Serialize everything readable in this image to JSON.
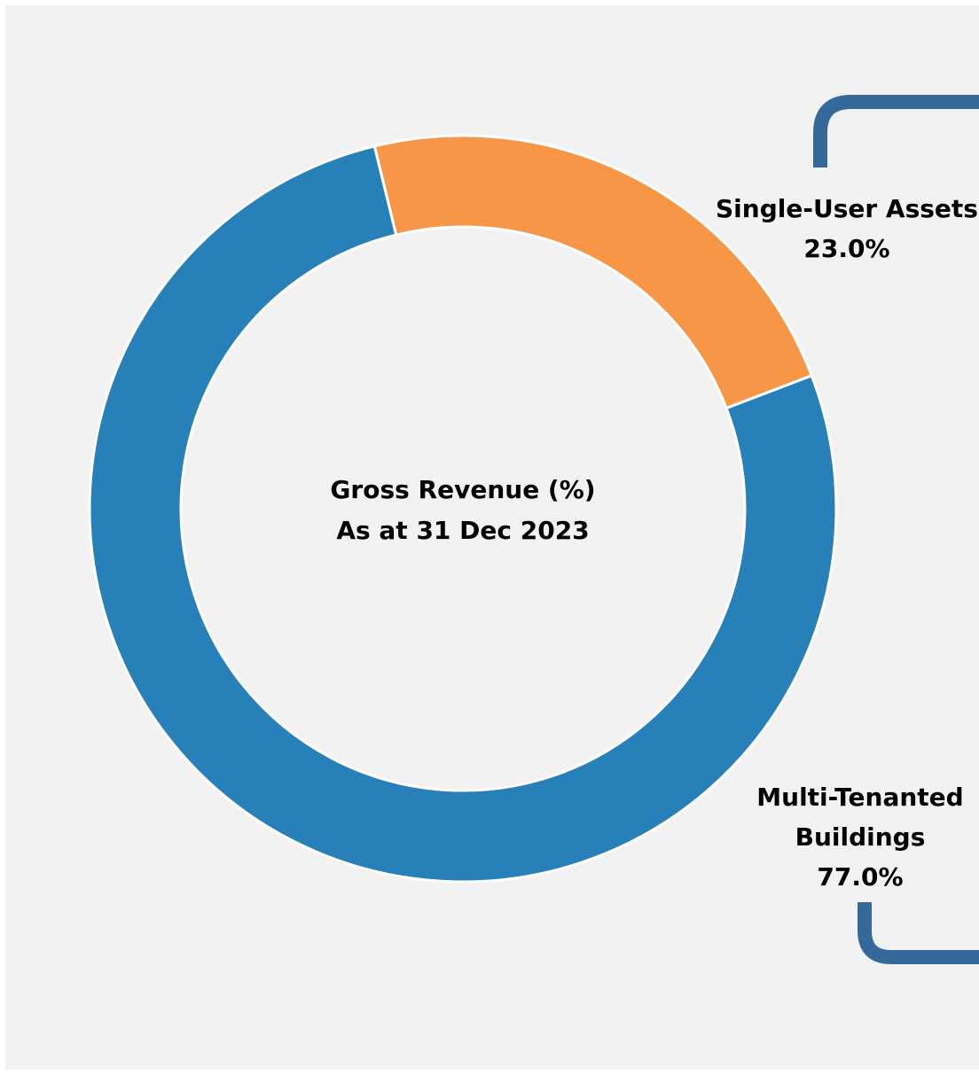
{
  "chart_data": {
    "type": "donut",
    "title": "Gross Revenue (%)",
    "subtitle": "As at 31 Dec 2023",
    "categories": [
      "Single-User Assets",
      "Multi-Tenanted Buildings"
    ],
    "values": [
      23.0,
      77.0
    ],
    "value_labels": [
      "23.0%",
      "77.0%"
    ],
    "colors": [
      "#f79646",
      "#2780b8"
    ]
  }
}
